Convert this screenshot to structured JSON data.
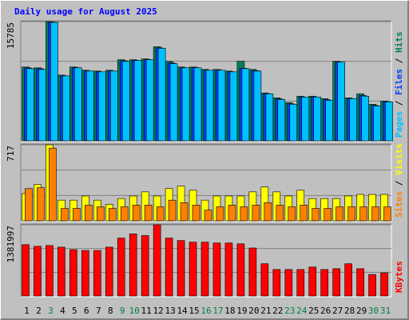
{
  "chart_data": [
    {
      "type": "bar",
      "title": "Daily usage for August 2025",
      "ylim": [
        0,
        15785
      ],
      "yticks": [
        15785
      ],
      "series": [
        {
          "name": "Hits",
          "color": "#00805c",
          "values": [
            9773,
            9663,
            15785,
            8698,
            9773,
            9343,
            9235,
            9343,
            10738,
            10738,
            10846,
            12456,
            10524,
            9773,
            9773,
            9450,
            9450,
            9235,
            10524,
            9450,
            6336,
            5691,
            5047,
            5906,
            5906,
            5584,
            10524,
            5691,
            6228,
            4832,
            5262
          ]
        },
        {
          "name": "Files",
          "color": "#0040ff",
          "values": [
            9650,
            9550,
            15700,
            8600,
            9680,
            9250,
            9130,
            9240,
            10600,
            10650,
            10750,
            12300,
            10300,
            9680,
            9680,
            9350,
            9350,
            9130,
            9600,
            9300,
            6250,
            5550,
            4900,
            5800,
            5800,
            5450,
            10420,
            5600,
            6000,
            4700,
            5160
          ]
        },
        {
          "name": "Pages",
          "color": "#00c0ff",
          "values": [
            9557,
            9450,
            15678,
            8590,
            9665,
            9235,
            9128,
            9235,
            10524,
            10631,
            10738,
            12241,
            10202,
            9665,
            9665,
            9343,
            9343,
            9128,
            9557,
            9235,
            6228,
            5477,
            4832,
            5799,
            5799,
            5369,
            10416,
            5584,
            5906,
            4618,
            5155
          ]
        }
      ],
      "legend_separator": " / "
    },
    {
      "type": "bar",
      "ylim": [
        0,
        717
      ],
      "yticks": [
        717
      ],
      "series": [
        {
          "name": "Visits",
          "color": "#ffff00",
          "values": [
            257,
            343,
            717,
            195,
            195,
            234,
            195,
            156,
            210,
            234,
            273,
            234,
            304,
            327,
            288,
            195,
            234,
            234,
            234,
            273,
            319,
            273,
            234,
            288,
            210,
            210,
            210,
            234,
            249,
            249,
            249
          ]
        },
        {
          "name": "Sites",
          "color": "#ff8000",
          "values": [
            304,
            312,
            686,
            117,
            117,
            148,
            132,
            117,
            132,
            148,
            148,
            132,
            195,
            171,
            148,
            101,
            132,
            148,
            132,
            148,
            171,
            148,
            132,
            148,
            117,
            117,
            132,
            132,
            132,
            132,
            132
          ]
        }
      ],
      "legend_separator": " / "
    },
    {
      "type": "bar",
      "ylim": [
        0,
        1381997
      ],
      "yticks": [
        1381997
      ],
      "series": [
        {
          "name": "KBytes",
          "color": "#ff0000",
          "values": [
            996340,
            964200,
            980270,
            948130,
            899920,
            883850,
            883850,
            948130,
            1124900,
            1205250,
            1173110,
            1381997,
            1124900,
            1076690,
            1044550,
            1044550,
            1028480,
            1028480,
            1012410,
            932060,
            626730,
            514240,
            514240,
            514240,
            562450,
            514240,
            530310,
            626730,
            530310,
            417820,
            449960
          ]
        }
      ],
      "categories": [
        "1",
        "2",
        "3",
        "4",
        "5",
        "6",
        "7",
        "8",
        "9",
        "10",
        "11",
        "12",
        "13",
        "14",
        "15",
        "16",
        "17",
        "18",
        "19",
        "20",
        "21",
        "22",
        "23",
        "24",
        "25",
        "26",
        "27",
        "28",
        "29",
        "30",
        "31"
      ],
      "category_colors": [
        "#000000",
        "#000000",
        "#008040",
        "#000000",
        "#000000",
        "#000000",
        "#000000",
        "#000000",
        "#008040",
        "#008040",
        "#000000",
        "#000000",
        "#000000",
        "#000000",
        "#000000",
        "#008040",
        "#008040",
        "#000000",
        "#000000",
        "#000000",
        "#000000",
        "#000000",
        "#008040",
        "#008040",
        "#000000",
        "#000000",
        "#000000",
        "#000000",
        "#000000",
        "#008040",
        "#008040"
      ]
    }
  ]
}
